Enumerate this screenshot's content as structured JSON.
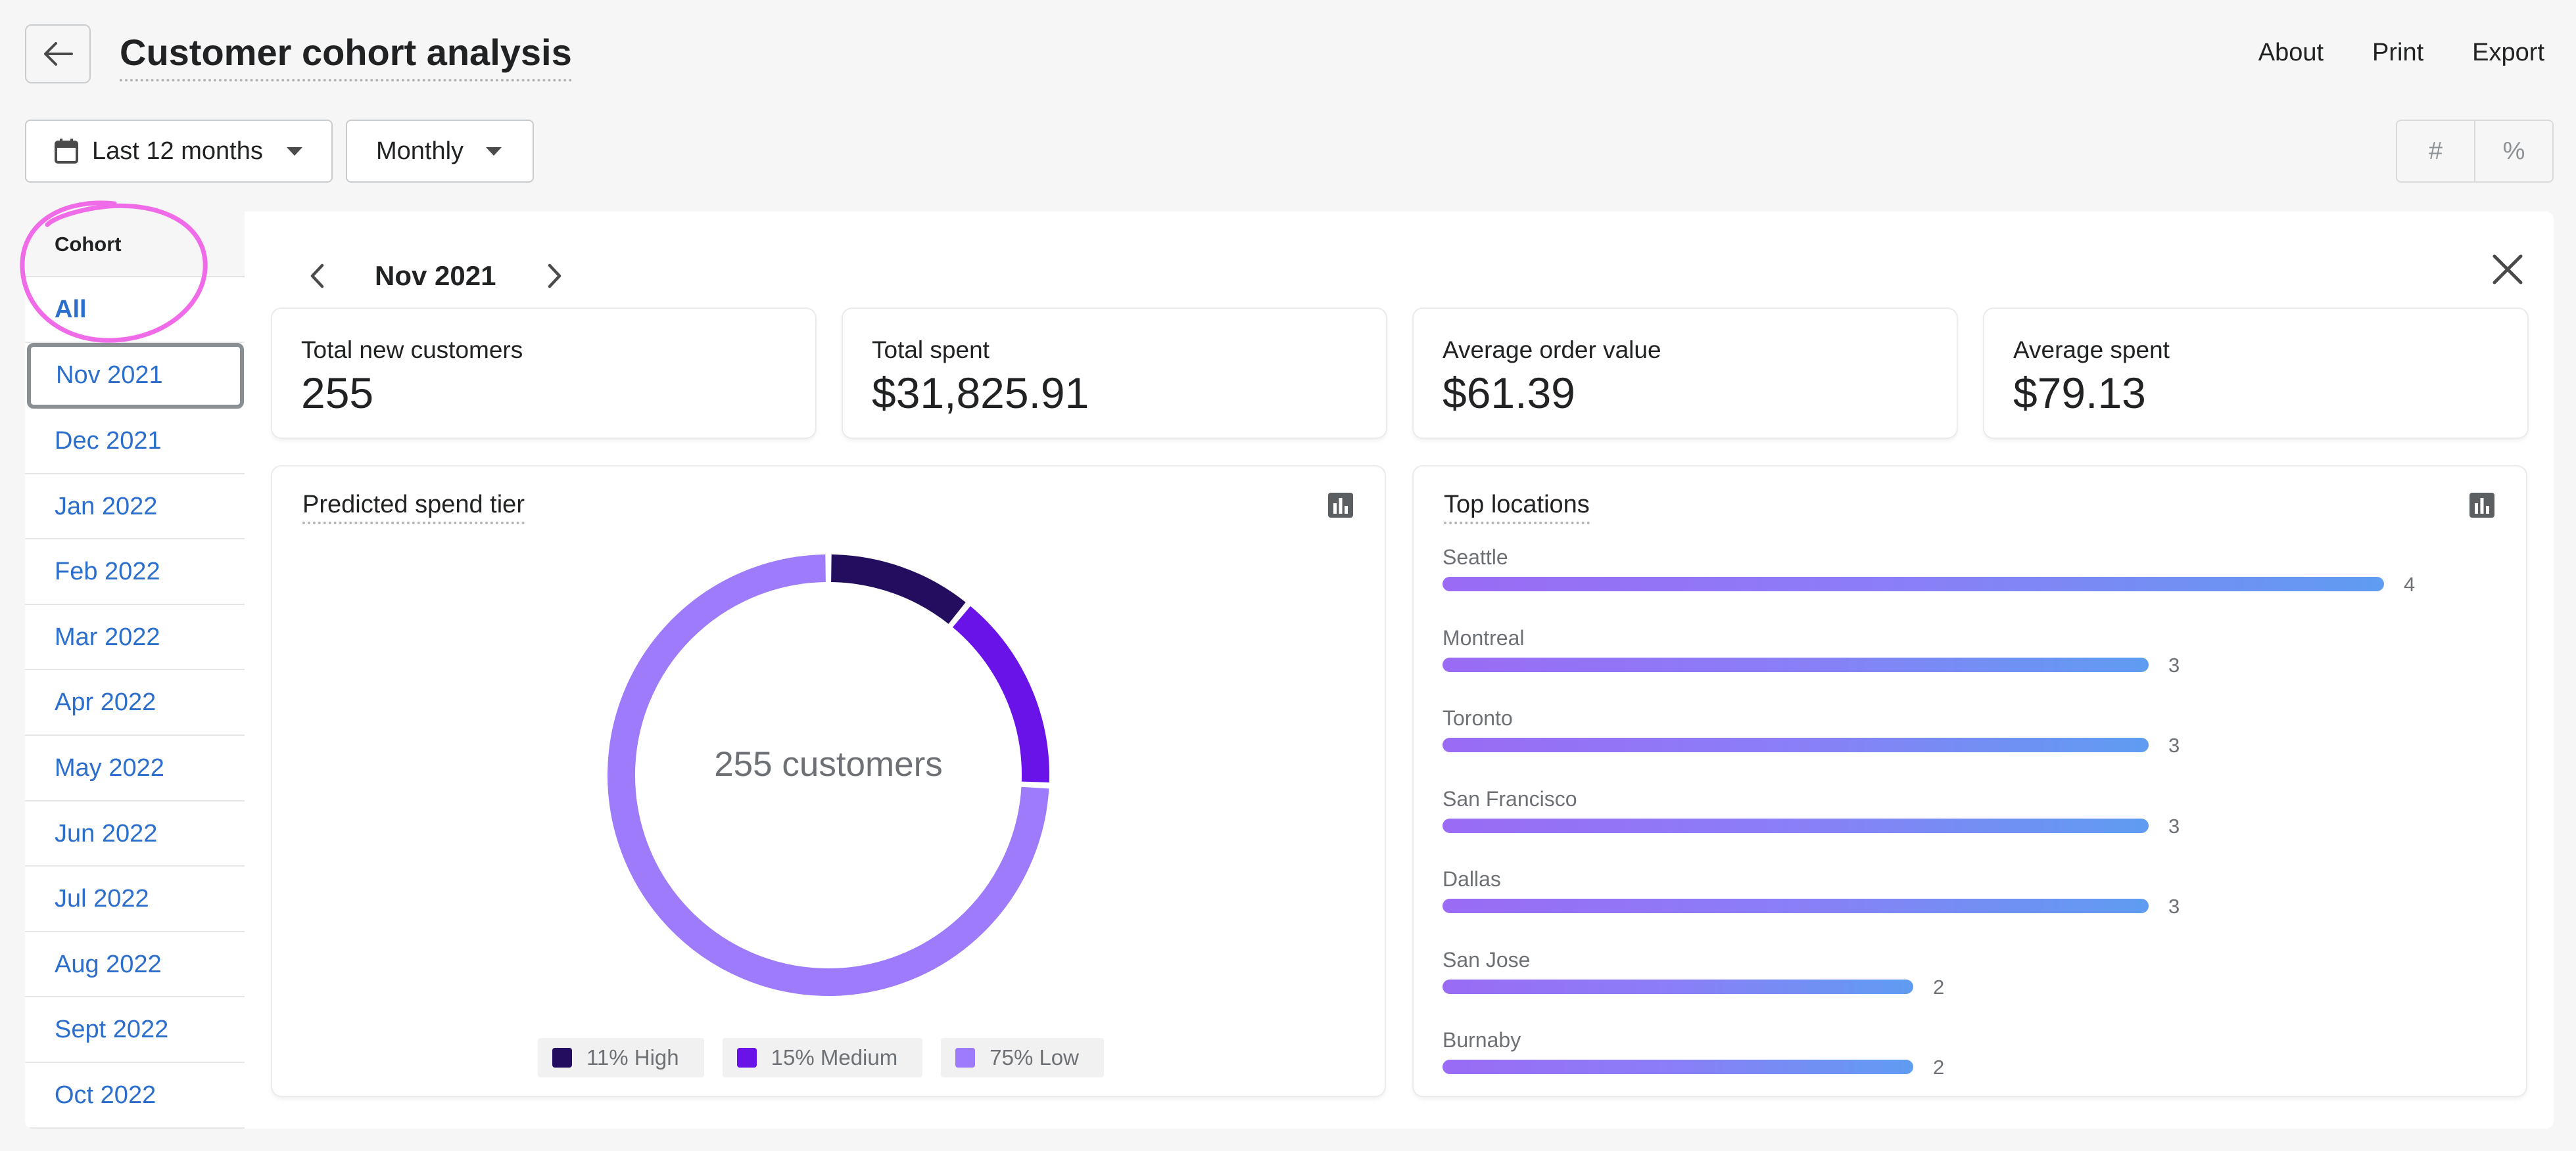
{
  "header": {
    "title": "Customer cohort analysis",
    "actions": [
      "About",
      "Print",
      "Export"
    ]
  },
  "filters": {
    "date_range": "Last 12 months",
    "frequency": "Monthly",
    "toggle": [
      "#",
      "%"
    ]
  },
  "sidebar": {
    "heading": "Cohort",
    "items": [
      "All",
      "Nov 2021",
      "Dec 2021",
      "Jan 2022",
      "Feb 2022",
      "Mar 2022",
      "Apr 2022",
      "May 2022",
      "Jun 2022",
      "Jul 2022",
      "Aug 2022",
      "Sept 2022",
      "Oct 2022"
    ],
    "selected_index": 1
  },
  "detail": {
    "month": "Nov 2021",
    "metrics": [
      {
        "label": "Total new customers",
        "value": "255"
      },
      {
        "label": "Total spent",
        "value": "$31,825.91"
      },
      {
        "label": "Average order value",
        "value": "$61.39"
      },
      {
        "label": "Average spent",
        "value": "$79.13"
      }
    ]
  },
  "spend_tier": {
    "title": "Predicted spend tier",
    "center_label": "255 customers",
    "icon": "bar-chart-icon"
  },
  "locations": {
    "title": "Top locations",
    "icon": "bar-chart-icon"
  },
  "colors": {
    "accent_link": "#2c6ecb",
    "high": "#230d5e",
    "medium": "#6a13e8",
    "low": "#9d7bfb",
    "bar_gradient_start": "#9a6bf5",
    "bar_gradient_end": "#5f9cf2",
    "annotation": "#f06be8"
  },
  "chart_data": [
    {
      "type": "pie",
      "title": "Predicted spend tier",
      "categories": [
        "High",
        "Medium",
        "Low"
      ],
      "values": [
        11,
        15,
        75
      ],
      "legend_labels": [
        "11% High",
        "15% Medium",
        "75% Low"
      ],
      "center_label": "255 customers",
      "legend": "bottom"
    },
    {
      "type": "bar",
      "title": "Top locations",
      "orientation": "horizontal",
      "categories": [
        "Seattle",
        "Montreal",
        "Toronto",
        "San Francisco",
        "Dallas",
        "San Jose",
        "Burnaby"
      ],
      "values": [
        4,
        3,
        3,
        3,
        3,
        2,
        2
      ],
      "xlim": [
        0,
        4
      ]
    }
  ]
}
